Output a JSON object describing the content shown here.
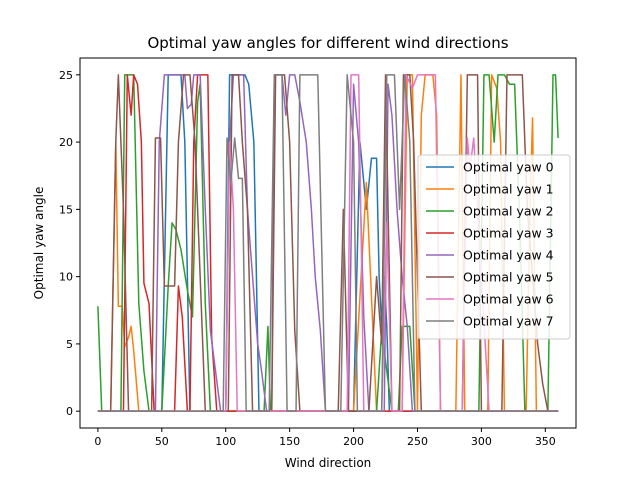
{
  "chart_data": {
    "type": "line",
    "title": "Optimal yaw angles for different wind directions",
    "xlabel": "Wind direction",
    "ylabel": "Optimal yaw angle",
    "xlim": [
      -14,
      374
    ],
    "ylim": [
      -1.25,
      26.25
    ],
    "xticks": [
      0,
      50,
      100,
      150,
      200,
      250,
      300,
      350
    ],
    "yticks": [
      0,
      5,
      10,
      15,
      20,
      25
    ],
    "grid": false,
    "legend_position": "center-right",
    "series": [
      {
        "name": "Optimal yaw 0",
        "color": "#1f77b4",
        "points": [
          [
            0,
            0
          ],
          [
            50,
            0
          ],
          [
            55,
            25
          ],
          [
            65,
            25
          ],
          [
            68,
            20
          ],
          [
            72,
            0
          ],
          [
            100,
            0
          ],
          [
            103,
            25
          ],
          [
            115,
            25
          ],
          [
            118,
            24.3
          ],
          [
            122,
            20
          ],
          [
            126,
            0
          ],
          [
            200,
            0
          ],
          [
            205,
            20
          ],
          [
            210,
            15
          ],
          [
            214,
            18.8
          ],
          [
            218,
            18.8
          ],
          [
            220,
            10
          ],
          [
            222,
            6.3
          ],
          [
            224,
            10
          ],
          [
            226,
            6.3
          ],
          [
            228,
            0
          ],
          [
            360,
            0
          ]
        ]
      },
      {
        "name": "Optimal yaw 1",
        "color": "#ff7f0e",
        "points": [
          [
            0,
            0
          ],
          [
            10,
            0
          ],
          [
            14,
            20
          ],
          [
            16,
            7.8
          ],
          [
            19,
            7.8
          ],
          [
            21,
            4.8
          ],
          [
            24,
            5.5
          ],
          [
            26,
            6.3
          ],
          [
            28,
            4.5
          ],
          [
            32,
            0
          ],
          [
            200,
            0
          ],
          [
            210,
            17
          ],
          [
            218,
            0
          ],
          [
            238,
            0
          ],
          [
            242,
            25
          ],
          [
            246,
            25
          ],
          [
            250,
            0
          ],
          [
            253,
            22
          ],
          [
            256,
            25
          ],
          [
            262,
            25
          ],
          [
            265,
            22
          ],
          [
            268,
            0
          ],
          [
            280,
            0
          ],
          [
            284,
            25
          ],
          [
            287,
            0
          ],
          [
            305,
            0
          ],
          [
            308,
            25
          ],
          [
            312,
            24
          ],
          [
            315,
            20
          ],
          [
            318,
            0
          ],
          [
            335,
            0
          ],
          [
            338,
            15
          ],
          [
            340,
            21.8
          ],
          [
            343,
            0
          ],
          [
            360,
            0
          ]
        ]
      },
      {
        "name": "Optimal yaw 2",
        "color": "#2ca02c",
        "points": [
          [
            0,
            7.8
          ],
          [
            3,
            0
          ],
          [
            18,
            0
          ],
          [
            21,
            25
          ],
          [
            28,
            25
          ],
          [
            32,
            8
          ],
          [
            36,
            3
          ],
          [
            40,
            0
          ],
          [
            50,
            0
          ],
          [
            55,
            9.3
          ],
          [
            58,
            14
          ],
          [
            61,
            13.5
          ],
          [
            65,
            12
          ],
          [
            70,
            9
          ],
          [
            74,
            7
          ],
          [
            78,
            23
          ],
          [
            80,
            24.3
          ],
          [
            84,
            8
          ],
          [
            88,
            0
          ],
          [
            130,
            0
          ],
          [
            133,
            6.3
          ],
          [
            135,
            0
          ],
          [
            218,
            0
          ],
          [
            222,
            6
          ],
          [
            226,
            3
          ],
          [
            230,
            0
          ],
          [
            235,
            0
          ],
          [
            238,
            6.3
          ],
          [
            244,
            6.3
          ],
          [
            248,
            0
          ],
          [
            298,
            0
          ],
          [
            302,
            25
          ],
          [
            306,
            25
          ],
          [
            310,
            20
          ],
          [
            313,
            25
          ],
          [
            318,
            25
          ],
          [
            322,
            24.3
          ],
          [
            326,
            24.3
          ],
          [
            330,
            14
          ],
          [
            334,
            0
          ],
          [
            352,
            0
          ],
          [
            356,
            25
          ],
          [
            358,
            25
          ],
          [
            360,
            20.3
          ]
        ]
      },
      {
        "name": "Optimal yaw 3",
        "color": "#d62728",
        "points": [
          [
            0,
            0
          ],
          [
            20,
            0
          ],
          [
            23,
            25
          ],
          [
            26,
            22
          ],
          [
            28,
            25
          ],
          [
            31,
            24.3
          ],
          [
            34,
            20
          ],
          [
            36,
            9.5
          ],
          [
            40,
            8
          ],
          [
            44,
            0
          ],
          [
            60,
            0
          ],
          [
            63,
            9.3
          ],
          [
            66,
            7
          ],
          [
            70,
            0
          ],
          [
            72,
            0
          ],
          [
            75,
            20
          ],
          [
            78,
            25
          ],
          [
            86,
            25
          ],
          [
            89,
            5.5
          ],
          [
            93,
            0
          ],
          [
            360,
            0
          ]
        ]
      },
      {
        "name": "Optimal yaw 4",
        "color": "#9467bd",
        "points": [
          [
            0,
            0
          ],
          [
            45,
            0
          ],
          [
            48,
            20
          ],
          [
            52,
            25
          ],
          [
            68,
            25
          ],
          [
            70,
            22.5
          ],
          [
            73,
            22.8
          ],
          [
            75,
            25
          ],
          [
            80,
            25
          ],
          [
            84,
            15
          ],
          [
            88,
            6
          ],
          [
            92,
            3
          ],
          [
            96,
            0
          ],
          [
            100,
            0
          ],
          [
            103,
            20
          ],
          [
            106,
            25
          ],
          [
            114,
            25
          ],
          [
            117,
            15
          ],
          [
            121,
            10
          ],
          [
            125,
            5
          ],
          [
            128,
            3
          ],
          [
            132,
            0
          ],
          [
            136,
            0
          ],
          [
            138,
            25
          ],
          [
            144,
            25
          ],
          [
            147,
            22
          ],
          [
            150,
            25
          ],
          [
            154,
            25
          ],
          [
            158,
            23
          ],
          [
            163,
            20
          ],
          [
            167,
            15
          ],
          [
            170,
            10
          ],
          [
            174,
            6
          ],
          [
            178,
            0
          ],
          [
            196,
            0
          ],
          [
            200,
            24.3
          ],
          [
            204,
            20
          ],
          [
            208,
            7
          ],
          [
            212,
            0
          ],
          [
            224,
            0
          ],
          [
            227,
            24.3
          ],
          [
            230,
            22
          ],
          [
            234,
            15
          ],
          [
            238,
            10
          ],
          [
            242,
            6.3
          ],
          [
            246,
            0
          ],
          [
            360,
            0
          ]
        ]
      },
      {
        "name": "Optimal yaw 5",
        "color": "#8c564b",
        "points": [
          [
            0,
            0
          ],
          [
            10,
            0
          ],
          [
            14,
            20
          ],
          [
            16,
            25
          ],
          [
            20,
            15
          ],
          [
            24,
            0
          ],
          [
            42,
            0
          ],
          [
            45,
            20.3
          ],
          [
            49,
            20.3
          ],
          [
            52,
            9.3
          ],
          [
            60,
            9.3
          ],
          [
            63,
            20
          ],
          [
            67,
            25
          ],
          [
            72,
            25
          ],
          [
            76,
            20
          ],
          [
            80,
            10
          ],
          [
            84,
            0
          ],
          [
            102,
            0
          ],
          [
            105,
            25
          ],
          [
            110,
            25
          ],
          [
            113,
            20
          ],
          [
            117,
            15
          ],
          [
            121,
            0
          ],
          [
            136,
            0
          ],
          [
            139,
            25
          ],
          [
            146,
            25
          ],
          [
            150,
            20
          ],
          [
            154,
            6
          ],
          [
            158,
            0
          ],
          [
            188,
            0
          ],
          [
            192,
            15
          ],
          [
            196,
            0
          ],
          [
            212,
            0
          ],
          [
            215,
            5
          ],
          [
            218,
            10
          ],
          [
            222,
            5
          ],
          [
            225,
            25
          ],
          [
            230,
            0
          ],
          [
            236,
            0
          ],
          [
            239,
            25
          ],
          [
            244,
            25
          ],
          [
            247,
            20
          ],
          [
            250,
            10
          ],
          [
            253,
            0
          ],
          [
            285,
            0
          ],
          [
            289,
            25
          ],
          [
            297,
            25
          ],
          [
            300,
            0
          ],
          [
            316,
            0
          ],
          [
            320,
            25
          ],
          [
            332,
            25
          ],
          [
            336,
            15
          ],
          [
            340,
            10
          ],
          [
            344,
            5
          ],
          [
            348,
            2
          ],
          [
            352,
            0
          ],
          [
            360,
            0
          ]
        ]
      },
      {
        "name": "Optimal yaw 6",
        "color": "#e377c2",
        "points": [
          [
            0,
            0
          ],
          [
            100,
            0
          ],
          [
            103,
            20
          ],
          [
            106,
            15
          ],
          [
            109,
            0
          ],
          [
            195,
            0
          ],
          [
            198,
            25
          ],
          [
            204,
            25
          ],
          [
            208,
            0
          ],
          [
            222,
            0
          ],
          [
            226,
            14
          ],
          [
            230,
            0
          ],
          [
            238,
            0
          ],
          [
            241,
            25
          ],
          [
            246,
            24
          ],
          [
            250,
            25
          ],
          [
            256,
            25
          ],
          [
            260,
            25
          ],
          [
            264,
            25
          ],
          [
            268,
            0
          ],
          [
            285,
            0
          ],
          [
            289,
            20.3
          ],
          [
            291,
            18
          ],
          [
            294,
            20.3
          ],
          [
            297,
            15
          ],
          [
            300,
            10
          ],
          [
            303,
            5
          ],
          [
            306,
            0
          ],
          [
            360,
            0
          ]
        ]
      },
      {
        "name": "Optimal yaw 7",
        "color": "#7f7f7f",
        "points": [
          [
            0,
            0
          ],
          [
            98,
            0
          ],
          [
            101,
            20.3
          ],
          [
            104,
            17
          ],
          [
            107,
            20.3
          ],
          [
            110,
            17.3
          ],
          [
            113,
            17.3
          ],
          [
            116,
            0
          ],
          [
            134,
            0
          ],
          [
            138,
            25
          ],
          [
            144,
            25
          ],
          [
            148,
            0
          ],
          [
            155,
            0
          ],
          [
            158,
            25
          ],
          [
            172,
            25
          ],
          [
            178,
            0
          ],
          [
            190,
            0
          ],
          [
            195,
            25
          ],
          [
            200,
            20
          ],
          [
            203,
            0
          ],
          [
            222,
            0
          ],
          [
            226,
            25
          ],
          [
            232,
            25
          ],
          [
            236,
            15
          ],
          [
            240,
            25
          ],
          [
            244,
            20
          ],
          [
            248,
            0
          ],
          [
            360,
            0
          ]
        ]
      }
    ]
  }
}
